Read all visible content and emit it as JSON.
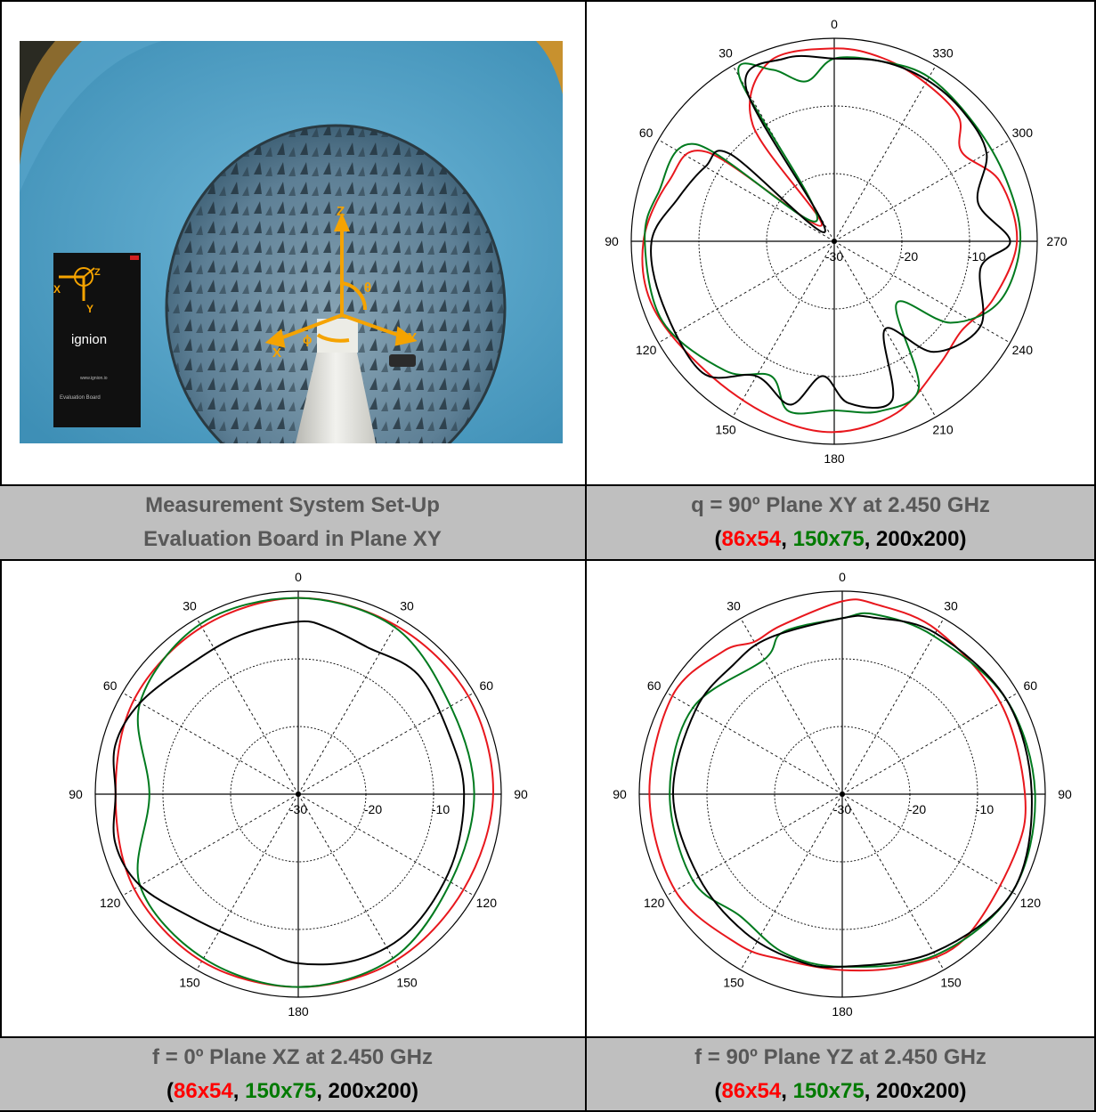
{
  "photo": {
    "logo": "ignion",
    "board_title": "Evaluation Board",
    "board_site": "www.ignion.io",
    "axes": {
      "z": "Z",
      "x": "X",
      "y": "Y",
      "theta": "θ",
      "phi": "ϕ"
    }
  },
  "captions": {
    "setup_line1": "Measurement System Set-Up",
    "setup_line2": "Evaluation Board in Plane XY",
    "xy_title": "q = 90º Plane XY at 2.450 GHz",
    "xz_title": "f = 0º Plane XZ at 2.450 GHz",
    "yz_title": "f = 90º Plane YZ at 2.450 GHz",
    "open_paren": "(",
    "sep": ", ",
    "close_paren": ")",
    "s1": "86x54",
    "s2": "150x75",
    "s3": "200x200"
  },
  "colors": {
    "s1": "#e8171d",
    "s2": "#007a1e",
    "s3": "#000000",
    "caption_bg": "#bfbfbf"
  },
  "chart_data": [
    {
      "type": "polar",
      "title": "q = 90º Plane XY at 2.450 GHz",
      "angle_labels": [
        "0",
        "30",
        "60",
        "90",
        "120",
        "150",
        "180",
        "210",
        "240",
        "270",
        "300",
        "330"
      ],
      "radial_labels": [
        "-30",
        "-20",
        "-10"
      ],
      "r_range": [
        -30,
        0
      ],
      "series": [
        {
          "name": "86x54",
          "color": "#e8171d",
          "points": [
            [
              0,
              -1.5
            ],
            [
              20,
              -1.8
            ],
            [
              35,
              -9
            ],
            [
              40,
              -27
            ],
            [
              55,
              -7
            ],
            [
              70,
              -4
            ],
            [
              90,
              -1.8
            ],
            [
              110,
              -1.5
            ],
            [
              135,
              -3
            ],
            [
              160,
              -2.5
            ],
            [
              180,
              -1.8
            ],
            [
              200,
              -3
            ],
            [
              220,
              -6
            ],
            [
              235,
              -7
            ],
            [
              250,
              -5
            ],
            [
              270,
              -3
            ],
            [
              290,
              -4
            ],
            [
              305,
              -7
            ],
            [
              315,
              -4
            ],
            [
              330,
              -3
            ],
            [
              345,
              -2
            ]
          ]
        },
        {
          "name": "150x75",
          "color": "#007a1e",
          "points": [
            [
              0,
              -3
            ],
            [
              10,
              -6
            ],
            [
              20,
              -3
            ],
            [
              30,
              -2
            ],
            [
              40,
              -26
            ],
            [
              55,
              -5
            ],
            [
              75,
              -3
            ],
            [
              90,
              -2
            ],
            [
              115,
              -2
            ],
            [
              140,
              -5
            ],
            [
              155,
              -8
            ],
            [
              165,
              -4
            ],
            [
              180,
              -5
            ],
            [
              195,
              -4
            ],
            [
              210,
              -5
            ],
            [
              225,
              -17
            ],
            [
              235,
              -9
            ],
            [
              250,
              -4
            ],
            [
              270,
              -2.5
            ],
            [
              290,
              -3
            ],
            [
              310,
              -3
            ],
            [
              330,
              -2
            ],
            [
              345,
              -2.5
            ]
          ]
        },
        {
          "name": "200x200",
          "color": "#000000",
          "points": [
            [
              0,
              -3
            ],
            [
              15,
              -2
            ],
            [
              30,
              -4
            ],
            [
              42,
              -28
            ],
            [
              50,
              -10
            ],
            [
              60,
              -8
            ],
            [
              75,
              -6
            ],
            [
              90,
              -3
            ],
            [
              110,
              -3
            ],
            [
              135,
              -2.5
            ],
            [
              150,
              -7
            ],
            [
              165,
              -5
            ],
            [
              175,
              -10
            ],
            [
              185,
              -6
            ],
            [
              200,
              -5
            ],
            [
              210,
              -15
            ],
            [
              222,
              -8
            ],
            [
              240,
              -5
            ],
            [
              260,
              -8
            ],
            [
              270,
              -4
            ],
            [
              285,
              -8
            ],
            [
              300,
              -4
            ],
            [
              315,
              -3
            ],
            [
              330,
              -2.5
            ],
            [
              345,
              -2.5
            ]
          ]
        }
      ]
    },
    {
      "type": "polar",
      "title": "f = 0º Plane XZ at 2.450 GHz",
      "angle_labels": [
        "0",
        "30",
        "60",
        "90",
        "120",
        "150",
        "180",
        "150",
        "120",
        "90",
        "60",
        "30"
      ],
      "radial_labels": [
        "-30",
        "-20",
        "-10"
      ],
      "r_range": [
        -30,
        0
      ],
      "series": [
        {
          "name": "86x54",
          "color": "#e8171d",
          "points": [
            [
              0,
              -1
            ],
            [
              30,
              -1.5
            ],
            [
              60,
              -2
            ],
            [
              90,
              -3
            ],
            [
              120,
              -2
            ],
            [
              150,
              -1.5
            ],
            [
              180,
              -1.5
            ],
            [
              210,
              -1.5
            ],
            [
              240,
              -1.8
            ],
            [
              270,
              -1.2
            ],
            [
              300,
              -1
            ],
            [
              330,
              -1.2
            ]
          ]
        },
        {
          "name": "150x75",
          "color": "#007a1e",
          "points": [
            [
              0,
              -1
            ],
            [
              30,
              -1
            ],
            [
              60,
              -3
            ],
            [
              90,
              -8
            ],
            [
              120,
              -3
            ],
            [
              150,
              -2
            ],
            [
              180,
              -1.5
            ],
            [
              210,
              -2
            ],
            [
              240,
              -4
            ],
            [
              270,
              -4
            ],
            [
              300,
              -4
            ],
            [
              330,
              -1.5
            ]
          ]
        },
        {
          "name": "200x200",
          "color": "#000000",
          "points": [
            [
              0,
              -4.5
            ],
            [
              20,
              -5
            ],
            [
              40,
              -5
            ],
            [
              60,
              -3
            ],
            [
              75,
              -2
            ],
            [
              90,
              -3
            ],
            [
              105,
              -2
            ],
            [
              120,
              -3
            ],
            [
              140,
              -6
            ],
            [
              165,
              -6.5
            ],
            [
              180,
              -5
            ],
            [
              200,
              -4
            ],
            [
              220,
              -4
            ],
            [
              245,
              -5
            ],
            [
              270,
              -5.5
            ],
            [
              290,
              -6
            ],
            [
              315,
              -5
            ],
            [
              335,
              -6
            ],
            [
              350,
              -5
            ]
          ]
        }
      ]
    },
    {
      "type": "polar",
      "title": "f = 90º Plane YZ at 2.450 GHz",
      "angle_labels": [
        "0",
        "30",
        "60",
        "90",
        "120",
        "150",
        "180",
        "150",
        "120",
        "90",
        "60",
        "30"
      ],
      "radial_labels": [
        "-30",
        "-20",
        "-10"
      ],
      "r_range": [
        -30,
        0
      ],
      "series": [
        {
          "name": "86x54",
          "color": "#e8171d",
          "points": [
            [
              0,
              -1.5
            ],
            [
              20,
              -3.5
            ],
            [
              30,
              -4
            ],
            [
              40,
              -2.5
            ],
            [
              60,
              -1
            ],
            [
              90,
              -1.5
            ],
            [
              120,
              -1.5
            ],
            [
              145,
              -3
            ],
            [
              160,
              -4
            ],
            [
              180,
              -4
            ],
            [
              200,
              -3
            ],
            [
              220,
              -2
            ],
            [
              250,
              -3
            ],
            [
              270,
              -3
            ],
            [
              300,
              -3
            ],
            [
              330,
              -2
            ],
            [
              350,
              -1.5
            ]
          ]
        },
        {
          "name": "150x75",
          "color": "#007a1e",
          "points": [
            [
              0,
              -4
            ],
            [
              20,
              -4.5
            ],
            [
              30,
              -7
            ],
            [
              60,
              -4.5
            ],
            [
              90,
              -4.5
            ],
            [
              120,
              -4.5
            ],
            [
              140,
              -6.5
            ],
            [
              160,
              -5
            ],
            [
              180,
              -4.5
            ],
            [
              210,
              -2.5
            ],
            [
              240,
              -1
            ],
            [
              270,
              -1.5
            ],
            [
              300,
              -2
            ],
            [
              330,
              -3
            ],
            [
              350,
              -3
            ]
          ]
        },
        {
          "name": "200x200",
          "color": "#000000",
          "points": [
            [
              0,
              -4
            ],
            [
              25,
              -4.5
            ],
            [
              40,
              -5
            ],
            [
              60,
              -5
            ],
            [
              90,
              -5
            ],
            [
              120,
              -5.5
            ],
            [
              145,
              -5
            ],
            [
              165,
              -4.5
            ],
            [
              180,
              -4.5
            ],
            [
              210,
              -3
            ],
            [
              240,
              -1
            ],
            [
              270,
              -2
            ],
            [
              300,
              -2
            ],
            [
              330,
              -2.5
            ],
            [
              350,
              -3.5
            ]
          ]
        }
      ]
    }
  ]
}
